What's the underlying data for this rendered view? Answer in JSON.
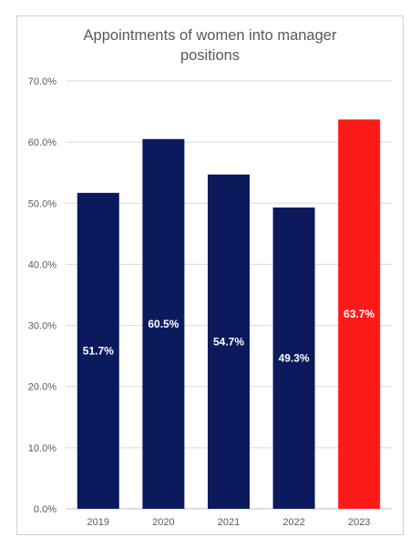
{
  "chart_data": {
    "type": "bar",
    "title_lines": [
      "Appointments of women into manager",
      "positions"
    ],
    "categories": [
      "2019",
      "2020",
      "2021",
      "2022",
      "2023"
    ],
    "values": [
      51.7,
      60.5,
      54.7,
      49.3,
      63.7
    ],
    "data_labels": [
      "51.7%",
      "60.5%",
      "54.7%",
      "49.3%",
      "63.7%"
    ],
    "bar_colors": [
      "#0b1a5c",
      "#0b1a5c",
      "#0b1a5c",
      "#0b1a5c",
      "#ff1a1a"
    ],
    "ylim": [
      0,
      70
    ],
    "yticks": [
      0,
      10,
      20,
      30,
      40,
      50,
      60,
      70
    ],
    "ytick_labels": [
      "0.0%",
      "10.0%",
      "20.0%",
      "30.0%",
      "40.0%",
      "50.0%",
      "60.0%",
      "70.0%"
    ],
    "grid": true,
    "legend": "none"
  }
}
